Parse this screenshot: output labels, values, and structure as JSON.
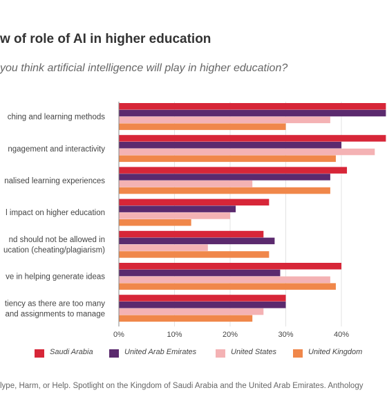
{
  "title": "w of role of AI in higher education",
  "subtitle": "you think artificial intelligence will play in higher education?",
  "source": "lype, Harm, or Help. Spotlight on the Kingdom of Saudi Arabia and the United Arab Emirates. Anthology",
  "colors": {
    "saudi": "#d72638",
    "uae": "#5b2a6e",
    "us": "#f4b2b4",
    "uk": "#f0874a",
    "grid": "#e3e3e3",
    "axis": "#888888"
  },
  "chart_data": {
    "type": "bar",
    "orientation": "horizontal",
    "categories": [
      [
        "ching and learning methods"
      ],
      [
        "ngagement and interactivity"
      ],
      [
        "nalised learning experiences"
      ],
      [
        "l impact on higher education"
      ],
      [
        "nd should not be allowed in",
        "ucation (cheating/plagiarism)"
      ],
      [
        "ve in helping generate ideas"
      ],
      [
        "tiency as there are too many",
        "and assignments to manage"
      ]
    ],
    "series": [
      {
        "name": "Saudi Arabia",
        "color": "#d72638",
        "values": [
          50,
          50,
          41,
          27,
          26,
          40,
          30
        ]
      },
      {
        "name": "United Arab Emirates",
        "color": "#5b2a6e",
        "values": [
          50,
          40,
          38,
          21,
          28,
          29,
          30
        ]
      },
      {
        "name": "United States",
        "color": "#f4b2b4",
        "values": [
          38,
          46,
          24,
          20,
          16,
          38,
          26
        ]
      },
      {
        "name": "United Kingdom",
        "color": "#f0874a",
        "values": [
          30,
          39,
          38,
          13,
          27,
          39,
          24
        ]
      }
    ],
    "xticks": [
      "0%",
      "10%",
      "20%",
      "30%",
      "40%"
    ],
    "xtick_values": [
      0,
      10,
      20,
      30,
      40
    ],
    "xlim": [
      0,
      48
    ],
    "grid": true,
    "legend_position": "bottom"
  }
}
